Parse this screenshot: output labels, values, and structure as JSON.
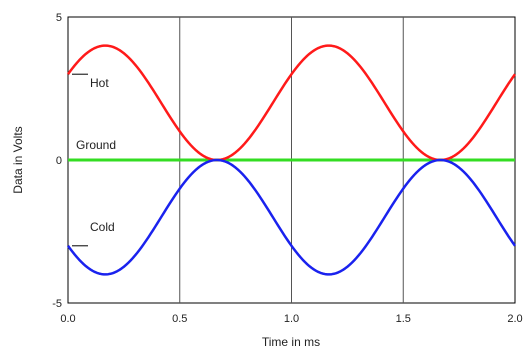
{
  "chart_data": {
    "type": "line",
    "xlabel": "Time in ms",
    "ylabel": "Data in Volts",
    "xlim": [
      0,
      2
    ],
    "ylim": [
      -5,
      5
    ],
    "x_ticks": [
      "0.0",
      "0.5",
      "1.0",
      "1.5",
      "2.0"
    ],
    "y_ticks": [
      "5",
      "0",
      "-5"
    ],
    "grid": "vertical lines at 0.5, 1.0, 1.5",
    "annotations": [
      "Hot",
      "Ground",
      "Cold"
    ],
    "series": [
      {
        "name": "Hot",
        "color": "#ff1a1a",
        "x": [
          0.0,
          0.1,
          0.167,
          0.25,
          0.333,
          0.4,
          0.5,
          0.6,
          0.667,
          0.75,
          0.833,
          0.9,
          1.0,
          1.1,
          1.167,
          1.25,
          1.333,
          1.4,
          1.5,
          1.6,
          1.667,
          1.75,
          1.833,
          1.9,
          2.0
        ],
        "y": [
          3.0,
          3.83,
          4.0,
          3.73,
          3.0,
          2.25,
          1.0,
          0.17,
          0.0,
          0.27,
          1.0,
          1.75,
          3.0,
          3.83,
          4.0,
          3.73,
          3.0,
          2.25,
          1.0,
          0.17,
          0.0,
          0.27,
          1.0,
          1.75,
          3.0
        ]
      },
      {
        "name": "Ground",
        "color": "#33dd22",
        "x": [
          0.0,
          2.0
        ],
        "y": [
          0.0,
          0.0
        ]
      },
      {
        "name": "Cold",
        "color": "#1a22ee",
        "x": [
          0.0,
          0.1,
          0.167,
          0.25,
          0.333,
          0.4,
          0.5,
          0.6,
          0.667,
          0.75,
          0.833,
          0.9,
          1.0,
          1.1,
          1.167,
          1.25,
          1.333,
          1.4,
          1.5,
          1.6,
          1.667,
          1.75,
          1.833,
          1.9,
          2.0
        ],
        "y": [
          -3.0,
          -3.83,
          -4.0,
          -3.73,
          -3.0,
          -2.25,
          -1.0,
          -0.17,
          0.0,
          -0.27,
          -1.0,
          -1.75,
          -3.0,
          -3.83,
          -4.0,
          -3.73,
          -3.0,
          -2.25,
          -1.0,
          -0.17,
          0.0,
          -0.27,
          -1.0,
          -1.75,
          -3.0
        ]
      }
    ]
  }
}
